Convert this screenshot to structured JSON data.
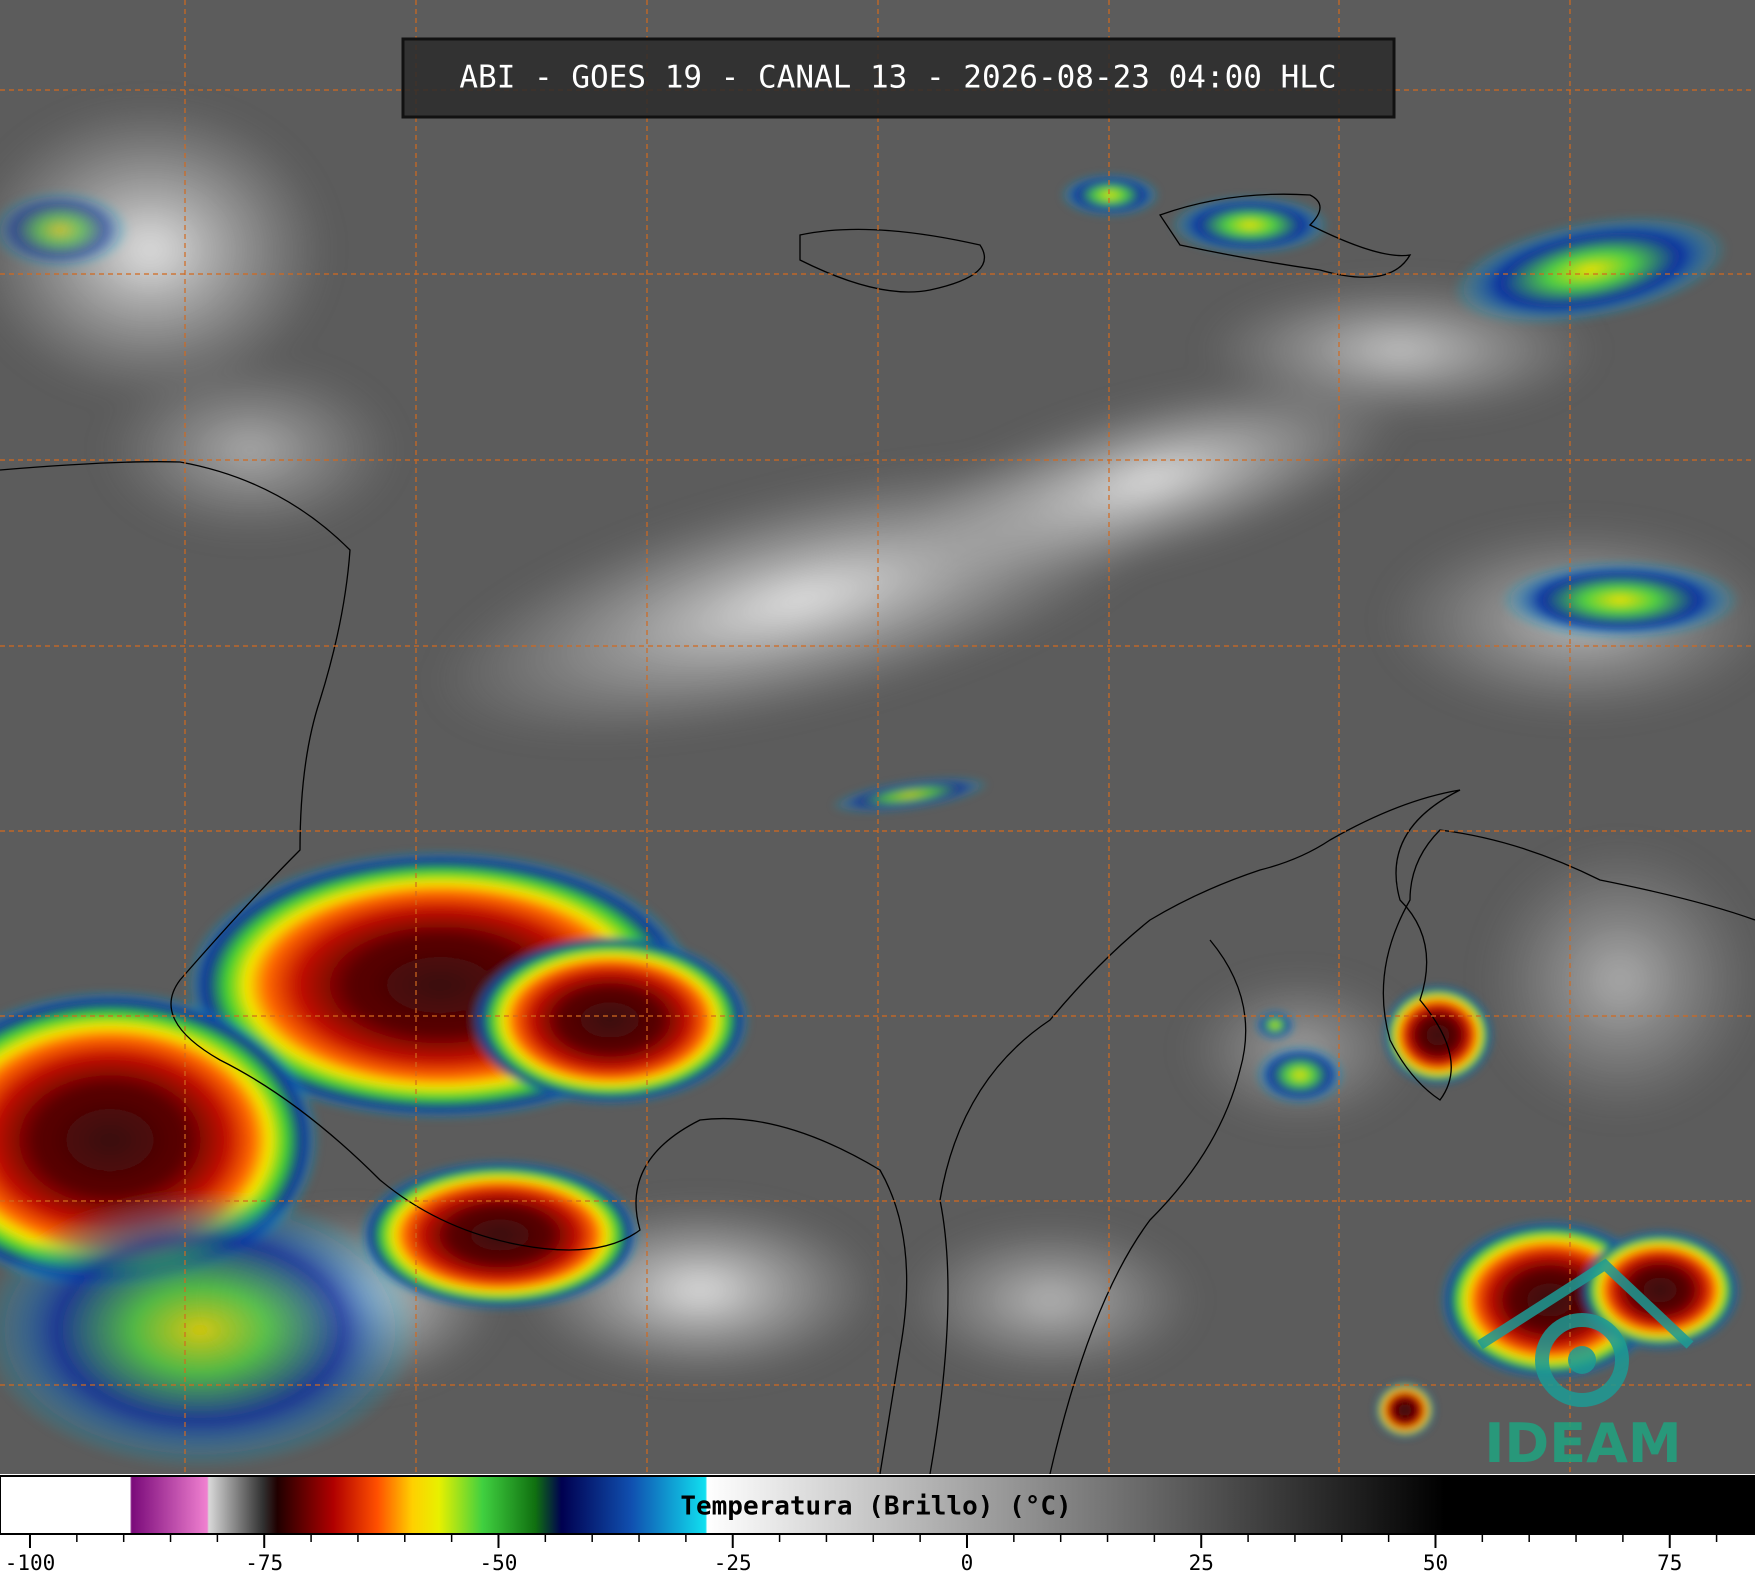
{
  "header": {
    "title": "ABI - GOES 19 - CANAL 13 - 2026-08-23 04:00 HLC"
  },
  "colorbar": {
    "label": "Temperatura (Brillo) (°C)",
    "xlim": [
      -103.2,
      84.1
    ],
    "ticks": [
      -100,
      -75,
      -50,
      -25,
      0,
      25,
      50,
      75
    ],
    "minor_ticks": [
      -95,
      -90,
      -85,
      -80,
      -70,
      -65,
      -60,
      -55,
      -45,
      -40,
      -35,
      -30,
      -20,
      -15,
      -10,
      -5,
      5,
      10,
      15,
      20,
      30,
      35,
      40,
      45,
      55,
      60,
      65,
      70,
      80
    ]
  },
  "logo": {
    "text": "IDEAM"
  }
}
